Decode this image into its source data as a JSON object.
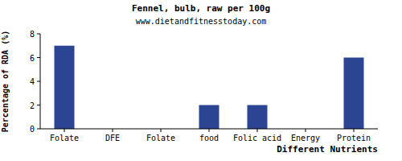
{
  "chart_data": {
    "type": "bar",
    "title": "Fennel, bulb, raw per 100g",
    "subtitle": "www.dietandfitnesstoday.com",
    "x_label": "Different Nutrients",
    "y_label": "Percentage of RDA (%)",
    "categories": [
      "Folate",
      "DFE",
      "Folate",
      "food",
      "Folic acid",
      "Energy",
      "Protein"
    ],
    "values": [
      7,
      0,
      0,
      2,
      2,
      0,
      6
    ],
    "color": "#2b4593",
    "ylim": [
      0,
      8
    ],
    "yticks": [
      0,
      2,
      4,
      6,
      8
    ],
    "grid": false
  }
}
